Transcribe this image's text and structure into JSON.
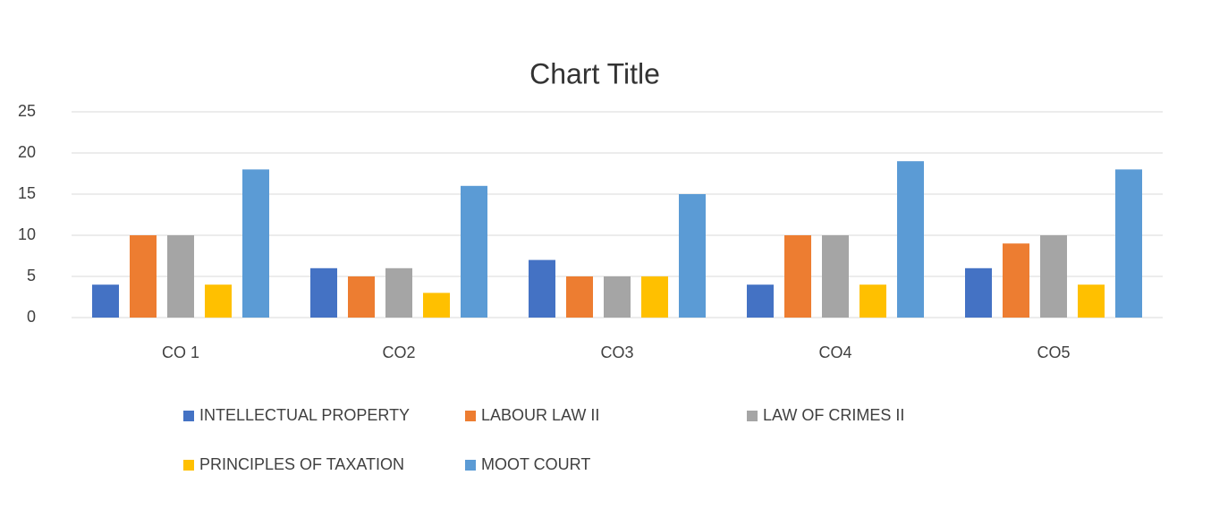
{
  "chart_data": {
    "type": "bar",
    "title": "Chart Title",
    "categories": [
      "CO 1",
      "CO2",
      "CO3",
      "CO4",
      "CO5"
    ],
    "series": [
      {
        "name": "INTELLECTUAL PROPERTY",
        "color": "#4472c4",
        "values": [
          4,
          6,
          7,
          4,
          6
        ]
      },
      {
        "name": "LABOUR LAW II",
        "color": "#ed7d31",
        "values": [
          10,
          5,
          5,
          10,
          9
        ]
      },
      {
        "name": "LAW OF CRIMES II",
        "color": "#a5a5a5",
        "values": [
          10,
          6,
          5,
          10,
          10
        ]
      },
      {
        "name": "PRINCIPLES OF TAXATION",
        "color": "#ffc000",
        "values": [
          4,
          3,
          5,
          4,
          4
        ]
      },
      {
        "name": "MOOT COURT",
        "color": "#5b9bd5",
        "values": [
          18,
          16,
          15,
          19,
          18
        ]
      }
    ],
    "ylim": [
      0,
      25
    ],
    "yticks": [
      0,
      5,
      10,
      15,
      20,
      25
    ],
    "grid": true,
    "legend": "bottom"
  }
}
